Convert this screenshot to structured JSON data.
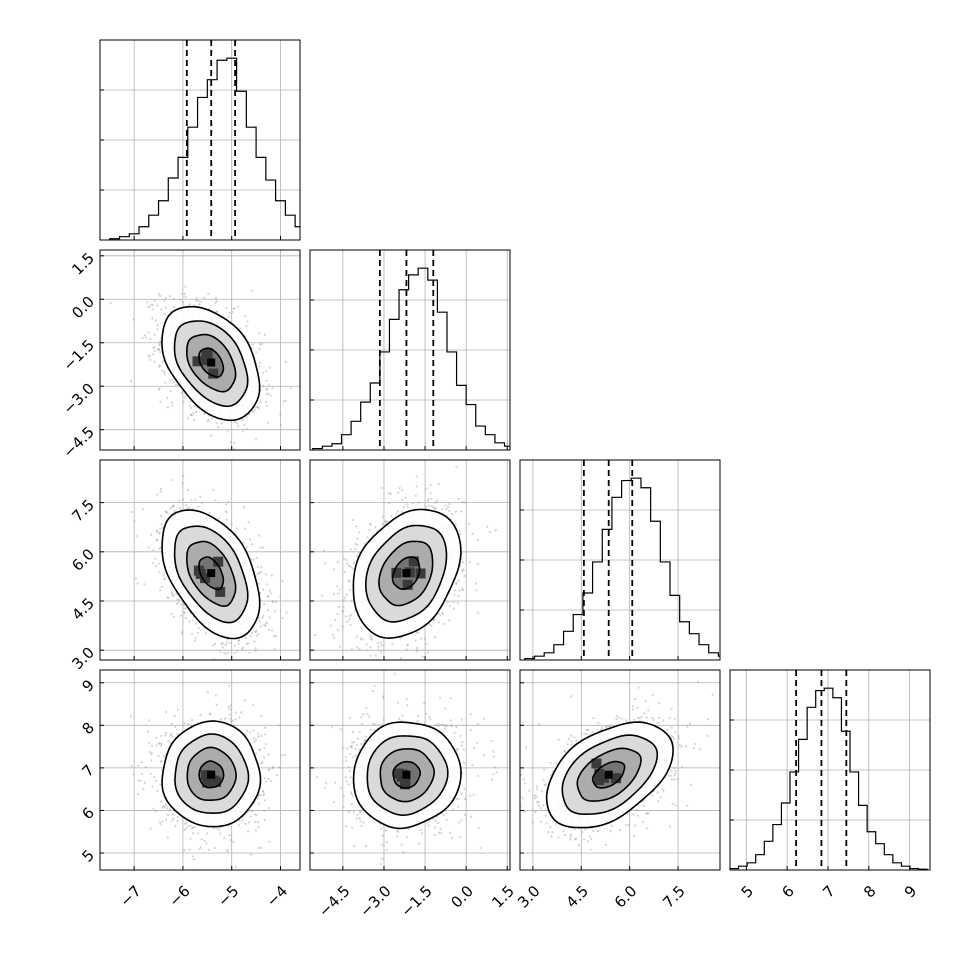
{
  "chart_data": {
    "type": "corner",
    "title": "",
    "parameters": [
      {
        "xlim": [
          -7.7,
          -3.6
        ],
        "ticks": [
          -7,
          -6,
          -5,
          -4
        ],
        "tick_labels": [
          "−7",
          "−6",
          "−5",
          "−4"
        ],
        "quantiles": [
          -5.92,
          -5.42,
          -4.93
        ],
        "hist": {
          "start": -7.5,
          "width": 0.2,
          "counts": [
            0.3,
            0.8,
            1.5,
            3.2,
            6,
            9.5,
            15,
            20,
            27.3,
            34.5,
            38.8,
            43.5,
            44,
            36,
            27.3,
            20,
            14.5,
            9.5,
            6,
            3.2,
            1.5,
            0.8,
            0.3
          ]
        }
      },
      {
        "xlim": [
          -5.7,
          1.6
        ],
        "ticks": [
          -4.5,
          -3.0,
          -1.5,
          0.0,
          1.5
        ],
        "tick_labels": [
          "−4.5",
          "−3.0",
          "−1.5",
          "0.0",
          "1.5"
        ],
        "quantiles": [
          -3.15,
          -2.18,
          -1.2
        ],
        "hist": {
          "start": -5.6,
          "width": 0.35,
          "counts": [
            0.3,
            0.8,
            1.3,
            3.2,
            6,
            10,
            14,
            20.5,
            27.3,
            33.5,
            36.6,
            38,
            35.5,
            28.8,
            20.5,
            13.5,
            9.5,
            5,
            3.2,
            1.5,
            0.8,
            0.3
          ]
        }
      },
      {
        "xlim": [
          2.6,
          8.8
        ],
        "ticks": [
          3.0,
          4.5,
          6.0,
          7.5
        ],
        "tick_labels": [
          "3.0",
          "4.5",
          "6.0",
          "7.5"
        ],
        "quantiles": [
          4.58,
          5.35,
          6.08
        ],
        "hist": {
          "start": 2.75,
          "width": 0.3,
          "counts": [
            0.3,
            0.8,
            1.5,
            3.2,
            6,
            9.5,
            14,
            20.5,
            27.3,
            34,
            37.5,
            38,
            36,
            29,
            20.5,
            13.5,
            8,
            5.5,
            3.2,
            1.5,
            0.8,
            0.3
          ]
        }
      },
      {
        "xlim": [
          4.6,
          9.5
        ],
        "ticks": [
          5,
          6,
          7,
          8,
          9
        ],
        "tick_labels": [
          "5",
          "6",
          "7",
          "8",
          "9"
        ],
        "quantiles": [
          6.22,
          6.84,
          7.45
        ],
        "hist": {
          "start": 4.6,
          "width": 0.21,
          "counts": [
            0.3,
            0.8,
            1.5,
            3.2,
            6,
            9.5,
            14,
            20.5,
            27.3,
            34,
            37.5,
            38,
            36,
            29,
            20.5,
            13.5,
            8,
            5.5,
            3.2,
            1.5,
            0.8,
            0.3,
            0.15
          ]
        }
      }
    ],
    "y_axes": [
      null,
      {
        "ylim": [
          -5.2,
          1.7
        ],
        "ticks": [
          -4.5,
          -3.0,
          -1.5,
          0.0,
          1.5
        ],
        "tick_labels": [
          "−4.5",
          "−3.0",
          "−1.5",
          "0.0",
          "1.5"
        ]
      },
      {
        "ylim": [
          2.7,
          8.8
        ],
        "ticks": [
          3.0,
          4.5,
          6.0,
          7.5
        ],
        "tick_labels": [
          "3.0",
          "4.5",
          "6.0",
          "7.5"
        ]
      },
      {
        "ylim": [
          4.6,
          9.3
        ],
        "ticks": [
          5,
          6,
          7,
          8,
          9
        ],
        "tick_labels": [
          "5",
          "6",
          "7",
          "8",
          "9"
        ]
      }
    ],
    "sigma": [
      0.5,
      0.98,
      0.98,
      0.62
    ],
    "mean": [
      -5.42,
      -2.18,
      5.35,
      6.84
    ],
    "correlations": {
      "1-0": -0.4,
      "2-0": -0.45,
      "2-1": 0.3,
      "3-0": 0.0,
      "3-1": 0.05,
      "3-2": 0.45
    },
    "contour_levels_sigma": [
      0.5,
      1.0,
      1.5,
      2.0
    ],
    "colors": {
      "line": "#000000",
      "scatter": "#9e9e9e",
      "grid": "#b0b0b0"
    },
    "grid": true
  }
}
